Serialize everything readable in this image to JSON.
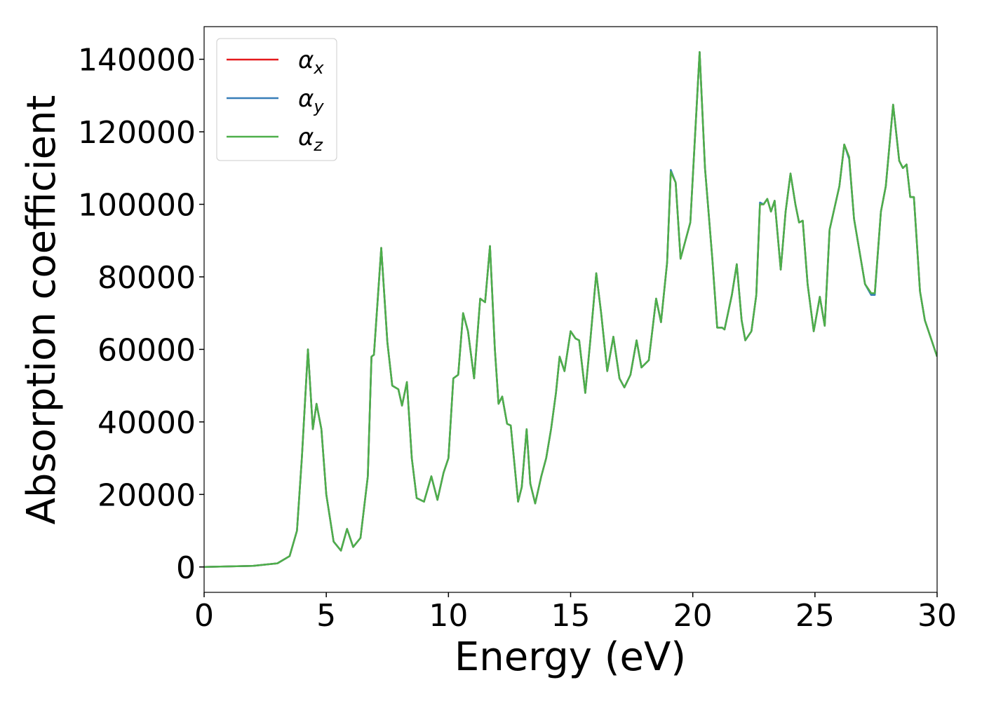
{
  "chart_data": {
    "type": "line",
    "x_label": "Energy (eV)",
    "y_label": "Absorption coefficient",
    "x": [
      0,
      2,
      3,
      3.5,
      3.8,
      4.0,
      4.25,
      4.45,
      4.6,
      4.8,
      5.0,
      5.3,
      5.6,
      5.85,
      6.1,
      6.4,
      6.7,
      6.85,
      6.95,
      7.25,
      7.5,
      7.7,
      7.95,
      8.1,
      8.3,
      8.5,
      8.7,
      9.0,
      9.3,
      9.55,
      9.8,
      10.0,
      10.2,
      10.4,
      10.6,
      10.8,
      11.05,
      11.3,
      11.5,
      11.7,
      11.9,
      12.05,
      12.2,
      12.4,
      12.55,
      12.85,
      13.0,
      13.2,
      13.35,
      13.55,
      13.8,
      14.0,
      14.2,
      14.4,
      14.55,
      14.75,
      15.0,
      15.2,
      15.35,
      15.6,
      15.8,
      16.05,
      16.25,
      16.5,
      16.75,
      17.0,
      17.2,
      17.45,
      17.7,
      17.9,
      18.2,
      18.5,
      18.7,
      18.95,
      19.1,
      19.3,
      19.5,
      19.7,
      19.9,
      20.28,
      20.5,
      20.8,
      21.0,
      21.2,
      21.3,
      21.6,
      21.8,
      22.0,
      22.15,
      22.4,
      22.6,
      22.75,
      22.9,
      23.05,
      23.2,
      23.35,
      23.6,
      23.8,
      24.0,
      24.2,
      24.35,
      24.5,
      24.7,
      24.95,
      25.2,
      25.4,
      25.6,
      25.8,
      26.0,
      26.2,
      26.4,
      26.6,
      26.8,
      27.05,
      27.3,
      27.45,
      27.7,
      27.9,
      28.2,
      28.45,
      28.6,
      28.75,
      28.9,
      29.05,
      29.3,
      29.5,
      30.0
    ],
    "series": [
      {
        "name": "αx",
        "color": "#e41a1c",
        "values": [
          0,
          300,
          1000,
          3000,
          10000,
          30000,
          60000,
          38000,
          45000,
          38000,
          20000,
          7000,
          4500,
          10500,
          5500,
          8000,
          25000,
          58000,
          58500,
          88000,
          62000,
          50000,
          49000,
          44500,
          51000,
          30000,
          19000,
          18000,
          25000,
          18500,
          26000,
          30000,
          52000,
          53000,
          70000,
          65000,
          52000,
          74000,
          73000,
          88500,
          60000,
          45000,
          47000,
          39500,
          39000,
          18000,
          22000,
          38000,
          23000,
          17500,
          25000,
          30000,
          38000,
          48000,
          58000,
          54000,
          65000,
          63000,
          62500,
          48000,
          62000,
          81000,
          70000,
          54000,
          63500,
          52000,
          49500,
          53000,
          62500,
          55000,
          57000,
          74000,
          67500,
          84000,
          109000,
          106000,
          85000,
          90000,
          95000,
          142000,
          110000,
          85000,
          66000,
          66000,
          65500,
          75000,
          83500,
          68000,
          62500,
          65000,
          75000,
          100000,
          100000,
          101500,
          98000,
          101000,
          82000,
          98000,
          108500,
          100000,
          95000,
          95500,
          78000,
          65000,
          74500,
          66500,
          93000,
          99000,
          105000,
          116500,
          113000,
          96000,
          88000,
          78000,
          75500,
          75500,
          98000,
          105000,
          127500,
          112000,
          110000,
          111000,
          102000,
          102000,
          76000,
          68000,
          58000
        ]
      },
      {
        "name": "αy",
        "color": "#377eb8",
        "values": [
          0,
          300,
          1000,
          3000,
          10000,
          30000,
          60000,
          38000,
          45000,
          38000,
          20000,
          7000,
          4500,
          10500,
          5500,
          8000,
          25000,
          58000,
          58500,
          88000,
          62000,
          50000,
          49000,
          44500,
          51000,
          30000,
          19000,
          18000,
          25000,
          18500,
          26000,
          30000,
          52000,
          53000,
          70000,
          65000,
          52000,
          74000,
          73000,
          88500,
          60000,
          45000,
          47000,
          39500,
          39000,
          18000,
          22000,
          38000,
          23000,
          17500,
          25000,
          30000,
          38000,
          48000,
          58000,
          54000,
          65000,
          63000,
          62500,
          48000,
          62000,
          81000,
          70000,
          54000,
          63500,
          52000,
          49500,
          53000,
          62500,
          55000,
          57000,
          74000,
          67500,
          84000,
          109500,
          106000,
          85000,
          90000,
          95000,
          142000,
          110000,
          85000,
          66000,
          66000,
          65500,
          75000,
          83500,
          68000,
          62500,
          65000,
          75000,
          100500,
          100000,
          101500,
          98000,
          101000,
          82000,
          98000,
          108500,
          100000,
          95000,
          95500,
          78000,
          65000,
          74500,
          66500,
          93000,
          99000,
          105000,
          116500,
          112500,
          96000,
          88000,
          78000,
          75000,
          75000,
          98000,
          105000,
          127500,
          112000,
          110000,
          111000,
          102000,
          102000,
          76000,
          68000,
          58000
        ]
      },
      {
        "name": "αz",
        "color": "#4daf4a",
        "values": [
          0,
          300,
          1000,
          3000,
          10000,
          30000,
          60000,
          38000,
          45000,
          38000,
          20000,
          7000,
          4500,
          10500,
          5500,
          8000,
          25000,
          58000,
          58500,
          88000,
          62000,
          50000,
          49000,
          44500,
          51000,
          30000,
          19000,
          18000,
          25000,
          18500,
          26000,
          30000,
          52000,
          53000,
          70000,
          65000,
          52000,
          74000,
          73000,
          88500,
          60000,
          45000,
          47000,
          39500,
          39000,
          18000,
          22000,
          38000,
          23000,
          17500,
          25000,
          30000,
          38000,
          48000,
          58000,
          54000,
          65000,
          63000,
          62500,
          48000,
          62000,
          81000,
          70000,
          54000,
          63500,
          52000,
          49500,
          53000,
          62500,
          55000,
          57000,
          74000,
          67500,
          84000,
          109000,
          106000,
          85000,
          90000,
          95000,
          142000,
          110000,
          85000,
          66000,
          66000,
          65500,
          75000,
          83500,
          68000,
          62500,
          65000,
          75000,
          100000,
          100000,
          101500,
          98000,
          101000,
          82000,
          98000,
          108500,
          100000,
          95000,
          95500,
          78000,
          65000,
          74500,
          66500,
          93000,
          99000,
          105000,
          116500,
          113000,
          96000,
          88000,
          78000,
          75500,
          75500,
          98000,
          105000,
          127500,
          112000,
          110000,
          111000,
          102000,
          102000,
          76000,
          68000,
          58000
        ]
      }
    ],
    "xlim": [
      0,
      30
    ],
    "xticks": [
      0,
      5,
      10,
      15,
      20,
      25,
      30
    ],
    "ylim": [
      -7000,
      149000
    ],
    "yticks": [
      0,
      20000,
      40000,
      60000,
      80000,
      100000,
      120000,
      140000
    ],
    "grid": false,
    "legend": "upper left"
  }
}
